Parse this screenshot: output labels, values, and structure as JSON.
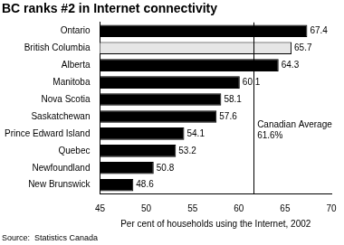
{
  "chart_data": {
    "type": "bar",
    "orientation": "horizontal",
    "title": "BC ranks #2 in Internet connectivity",
    "x_label": "Per cent of households using the Internet, 2002",
    "source": "Source:  Statistics Canada",
    "categories": [
      "Ontario",
      "British Columbia",
      "Alberta",
      "Manitoba",
      "Nova Scotia",
      "Saskatchewan",
      "Prince Edward Island",
      "Quebec",
      "Newfoundland",
      "New Brunswick"
    ],
    "values": [
      67.4,
      65.7,
      64.3,
      60.1,
      58.1,
      57.6,
      54.1,
      53.2,
      50.8,
      48.6
    ],
    "colors": [
      "#000000",
      "#e6e6e6",
      "#000000",
      "#000000",
      "#000000",
      "#000000",
      "#000000",
      "#000000",
      "#000000",
      "#000000"
    ],
    "xlim": [
      45,
      70
    ],
    "xticks": [
      45,
      50,
      55,
      60,
      65,
      70
    ],
    "grid": false,
    "data_labels": true,
    "annotation": {
      "text": "Canadian Average",
      "value": 61.6,
      "label": "61.6%"
    }
  }
}
